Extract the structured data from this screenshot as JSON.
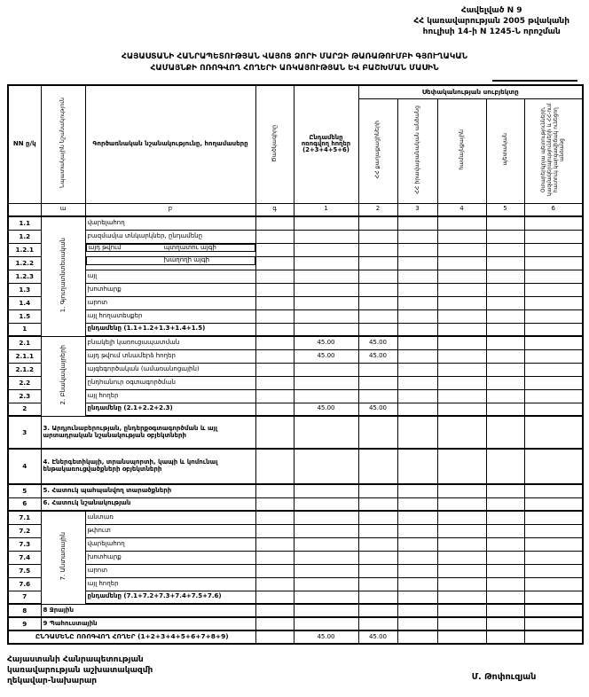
{
  "appendix": {
    "line1": "Հավելված N 9",
    "line2": "ՀՀ կառավարության 2005 թվականի",
    "line3": "հուլիսի 14-ի N 1245-Ն որոշման"
  },
  "title": {
    "line1": "ՀԱՅԱՍՏԱՆԻ ՀԱՆՐԱՊԵՏՈՒԹՅԱՆ ՎԱՅՈՑ ՁՈՐԻ ՄԱՐԶԻ ԹԱՌԱԹՈՒՄԲԻ ԳՅՈՒՂԱԿԱՆ",
    "line2": "ՀԱՄԱՅՆՔԻ ՈՌՈԳՎՈՂ ՀՈՂԵՐԻ ԱՌԿԱՅՈՒԹՅԱՆ ԵՎ ԲԱՇԽՄԱՆ ՄԱՍԻՆ"
  },
  "table": {
    "col_headers": {
      "nn": "NN ը/կ",
      "purpose": "Նպատակային նշանակություն",
      "functional": "Գործառնական նշանակությունը, հողամասերը",
      "code": "Ծածկագիրը",
      "total": "Ընդամենը ոռոգվող հողեր (2+3+4+5+6)",
      "ownership": "Սեփականության սուբյեկտը",
      "owners": [
        "ՀՀ քաղաքացիների",
        "ՀՀ իրավաբանական անձանց",
        "համայնքային",
        "պետական",
        "Օտարերկրյա պետությունների, կազմակերպությունների և ՀՀ-ում հատուկ կարգավիճակ ունեցող անձանց"
      ]
    },
    "index_row": [
      "",
      "ա",
      "բ",
      "գ",
      "1",
      "2",
      "3",
      "4",
      "5",
      "6"
    ],
    "rows": [
      {
        "no": "1.1",
        "label": "վարելահող",
        "section": "1. Գյուղատնտեսական",
        "section_span": 9,
        "values": [
          "",
          "",
          "",
          "",
          "",
          "",
          ""
        ]
      },
      {
        "no": "1.2",
        "label": "բազմամյա տնկարկներ, ընդամենը",
        "values": [
          "",
          "",
          "",
          "",
          "",
          "",
          ""
        ]
      },
      {
        "no": "1.2.1",
        "label": "այդ թվում",
        "label_right": "պտղատու այգի",
        "values": [
          "",
          "",
          "",
          "",
          "",
          "",
          ""
        ]
      },
      {
        "no": "1.2.2",
        "label": "",
        "label_right": "խաղողի այգի",
        "values": [
          "",
          "",
          "",
          "",
          "",
          "",
          ""
        ]
      },
      {
        "no": "1.2.3",
        "label": "այլ",
        "values": [
          "",
          "",
          "",
          "",
          "",
          "",
          ""
        ]
      },
      {
        "no": "1.3",
        "label": "խոտհարք",
        "values": [
          "",
          "",
          "",
          "",
          "",
          "",
          ""
        ]
      },
      {
        "no": "1.4",
        "label": "արոտ",
        "values": [
          "",
          "",
          "",
          "",
          "",
          "",
          ""
        ]
      },
      {
        "no": "1.5",
        "label": "այլ հողատեսքեր",
        "values": [
          "",
          "",
          "",
          "",
          "",
          "",
          ""
        ]
      },
      {
        "no": "1",
        "label": "ընդամենը (1.1+1.2+1.3+1.4+1.5)",
        "bold": true,
        "heavy_bottom": true,
        "values": [
          "",
          "",
          "",
          "",
          "",
          "",
          ""
        ]
      },
      {
        "no": "2.1",
        "label": "բնակելի կառուցապատման",
        "section": "2. Բնակավայրերի",
        "section_span": 6,
        "values": [
          "",
          "45.00",
          "45.00",
          "",
          "",
          "",
          ""
        ]
      },
      {
        "no": "2.1.1",
        "label": "այդ թվում տնամերձ հողեր",
        "values": [
          "",
          "45.00",
          "45.00",
          "",
          "",
          "",
          ""
        ]
      },
      {
        "no": "2.1.2",
        "label": "այգեգործական (ամառանոցային)",
        "values": [
          "",
          "",
          "",
          "",
          "",
          "",
          ""
        ]
      },
      {
        "no": "2.2",
        "label": "ընդհանուր օգտագործման",
        "values": [
          "",
          "",
          "",
          "",
          "",
          "",
          ""
        ]
      },
      {
        "no": "2.3",
        "label": "այլ հողեր",
        "values": [
          "",
          "",
          "",
          "",
          "",
          "",
          ""
        ]
      },
      {
        "no": "2",
        "label": "ընդամենը (2.1+2.2+2.3)",
        "bold": true,
        "heavy_bottom": true,
        "values": [
          "",
          "45.00",
          "45.00",
          "",
          "",
          "",
          ""
        ]
      },
      {
        "no": "3",
        "label": "3. Արդյունաբերության, ընդերքօգտագործման և այլ արտադրական նշանակության օբյեկտների",
        "wide": true,
        "bold": true,
        "height": 37,
        "heavy_bottom": true,
        "values": [
          "",
          "",
          "",
          "",
          "",
          "",
          ""
        ]
      },
      {
        "no": "4",
        "label": "4. Էներգետիկայի, տրանսպորտի, կապի և կոմունալ ենթակառուցվածքների օբյեկտների",
        "wide": true,
        "bold": true,
        "height": 40,
        "heavy_bottom": true,
        "values": [
          "",
          "",
          "",
          "",
          "",
          "",
          ""
        ]
      },
      {
        "no": "5",
        "label": "5. Հատուկ պահպանվող տարածքների",
        "wide": true,
        "bold": true,
        "values": [
          "",
          "",
          "",
          "",
          "",
          "",
          ""
        ]
      },
      {
        "no": "6",
        "label": "6. Հատուկ նշանակության",
        "wide": true,
        "bold": true,
        "heavy_bottom": true,
        "values": [
          "",
          "",
          "",
          "",
          "",
          "",
          ""
        ]
      },
      {
        "no": "7.1",
        "label": "անտառ",
        "section": "7. Անտառային",
        "section_span": 7,
        "values": [
          "",
          "",
          "",
          "",
          "",
          "",
          ""
        ]
      },
      {
        "no": "7.2",
        "label": "թփուտ",
        "values": [
          "",
          "",
          "",
          "",
          "",
          "",
          ""
        ]
      },
      {
        "no": "7.3",
        "label": "վարելահող",
        "values": [
          "",
          "",
          "",
          "",
          "",
          "",
          ""
        ]
      },
      {
        "no": "7.4",
        "label": "խոտհարք",
        "values": [
          "",
          "",
          "",
          "",
          "",
          "",
          ""
        ]
      },
      {
        "no": "7.5",
        "label": "արոտ",
        "values": [
          "",
          "",
          "",
          "",
          "",
          "",
          ""
        ]
      },
      {
        "no": "7.6",
        "label": "այլ հողեր",
        "values": [
          "",
          "",
          "",
          "",
          "",
          "",
          ""
        ]
      },
      {
        "no": "7",
        "label": "ընդամենը (7.1+7.2+7.3+7.4+7.5+7.6)",
        "bold": true,
        "heavy_bottom": true,
        "values": [
          "",
          "",
          "",
          "",
          "",
          "",
          ""
        ]
      },
      {
        "no": "8",
        "label": "8 Ջրային",
        "wide": true,
        "bold": true,
        "heavy_bottom": true,
        "values": [
          "",
          "",
          "",
          "",
          "",
          "",
          ""
        ]
      },
      {
        "no": "9",
        "label": "9 Պահուստային",
        "wide": true,
        "bold": true,
        "heavy_bottom": true,
        "values": [
          "",
          "",
          "",
          "",
          "",
          "",
          ""
        ]
      },
      {
        "no": "",
        "label": "ԸՆԴԱՄԵՆԸ ՈՌՈԳՎՈՂ ՀՈՂԵՐ (1+2+3+4+5+6+7+8+9)",
        "grand": true,
        "bold": true,
        "heavy_bottom": true,
        "values": [
          "",
          "45.00",
          "45.00",
          "",
          "",
          "",
          ""
        ]
      }
    ]
  },
  "footer": {
    "line1": "Հայաստանի Հանրապետության",
    "line2": "կառավարության աշխատակազմի",
    "line3": "ղեկավար-նախարար",
    "signature": "Մ. Թոփուզյան"
  }
}
